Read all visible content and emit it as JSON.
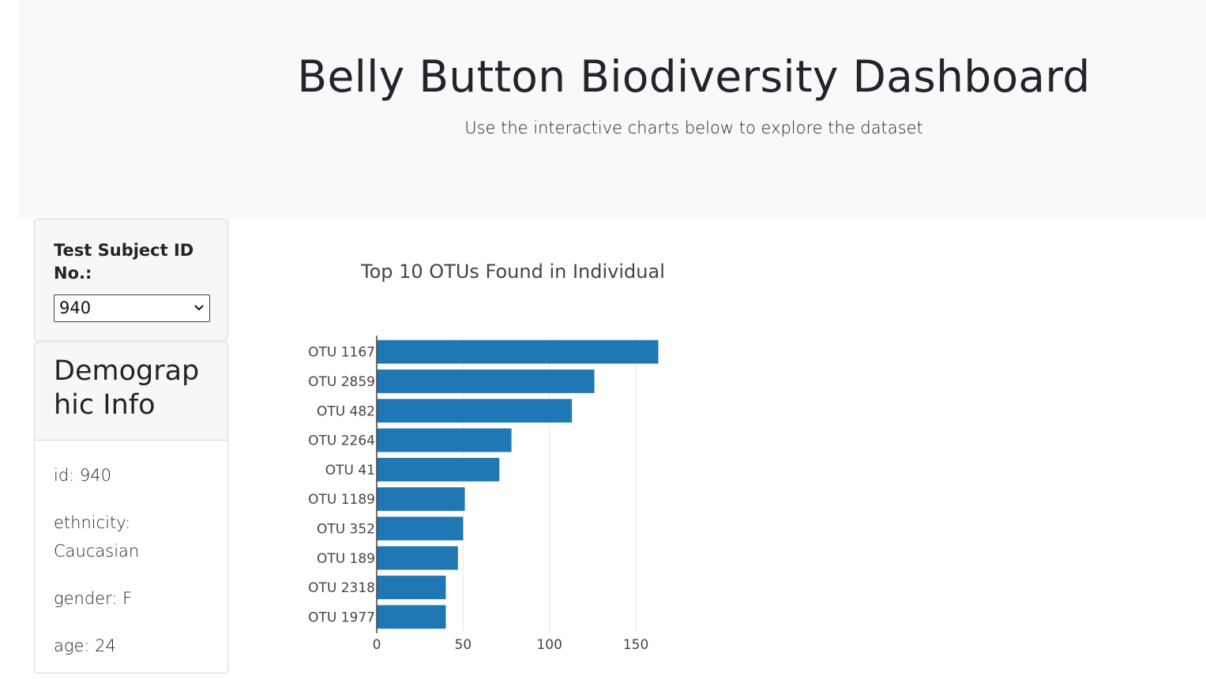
{
  "header": {
    "title": "Belly Button Biodiversity Dashboard",
    "subtitle": "Use the interactive charts below to explore the dataset"
  },
  "selector": {
    "label": "Test Subject ID No.:",
    "selected": "940"
  },
  "demographics": {
    "title": "Demographic Info",
    "items": [
      "id: 940",
      "ethnicity: Caucasian",
      "gender: F",
      "age: 24"
    ]
  },
  "chart_data": {
    "type": "bar",
    "orientation": "horizontal",
    "title": "Top 10 OTUs Found in Individual",
    "categories": [
      "OTU 1167",
      "OTU 2859",
      "OTU 482",
      "OTU 2264",
      "OTU 41",
      "OTU 1189",
      "OTU 352",
      "OTU 189",
      "OTU 2318",
      "OTU 1977"
    ],
    "values": [
      163,
      126,
      113,
      78,
      71,
      51,
      50,
      47,
      40,
      40
    ],
    "xticks": [
      0,
      50,
      100,
      150
    ],
    "xlim": [
      0,
      171
    ],
    "grid": true,
    "color": "#1f77b4"
  },
  "colors": {
    "jumbotron_bg": "#f8f9fa",
    "bar": "#1f77b4",
    "text": "#212529"
  }
}
